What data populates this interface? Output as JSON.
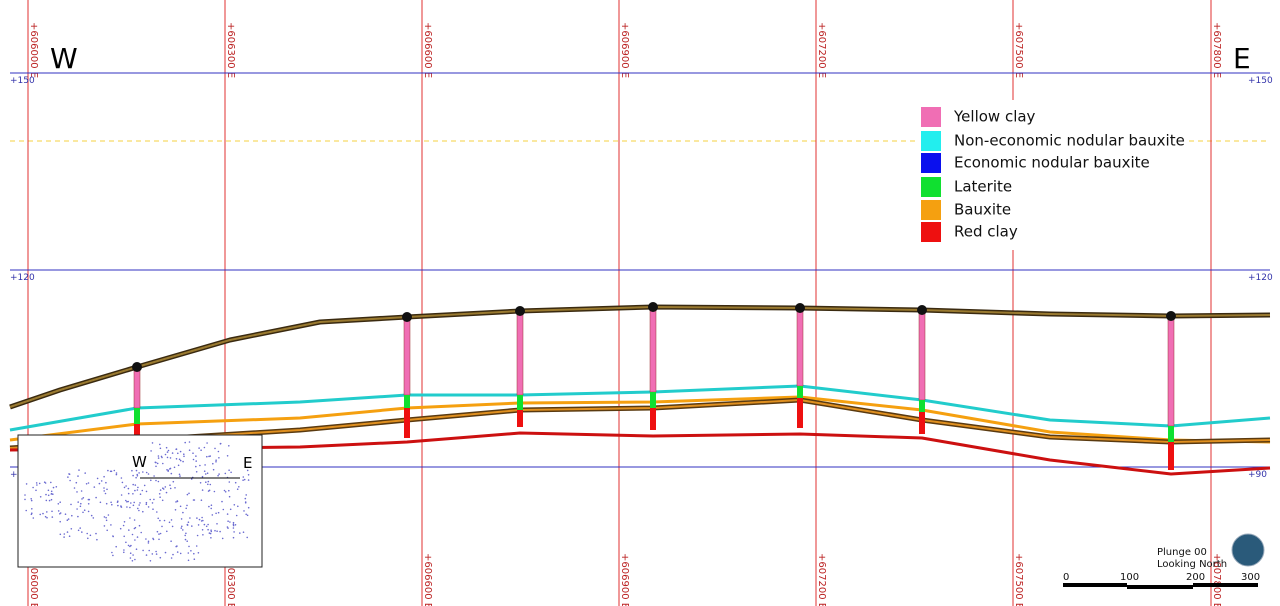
{
  "direction_labels": {
    "west": "W",
    "east": "E"
  },
  "eastings": [
    "+606000 E",
    "+606300 E",
    "+606600 E",
    "+606900 E",
    "+607200 E",
    "+607500 E",
    "+607800 E"
  ],
  "elevations": [
    "+150",
    "+120",
    "+90"
  ],
  "legend": [
    {
      "name": "Yellow clay",
      "color": "#f06eb4"
    },
    {
      "name": "Non-economic nodular bauxite",
      "color": "#22eeee"
    },
    {
      "name": "Economic nodular bauxite",
      "color": "#0a10ee"
    },
    {
      "name": "Laterite",
      "color": "#10e030"
    },
    {
      "name": "Bauxite",
      "color": "#f5a010"
    },
    {
      "name": "Red clay",
      "color": "#ee1010"
    }
  ],
  "view": {
    "plunge": "Plunge 00",
    "looking": "Looking North"
  },
  "scale_bar": [
    "0",
    "100",
    "200",
    "300"
  ],
  "inset": {
    "west": "W",
    "east": "E"
  }
}
